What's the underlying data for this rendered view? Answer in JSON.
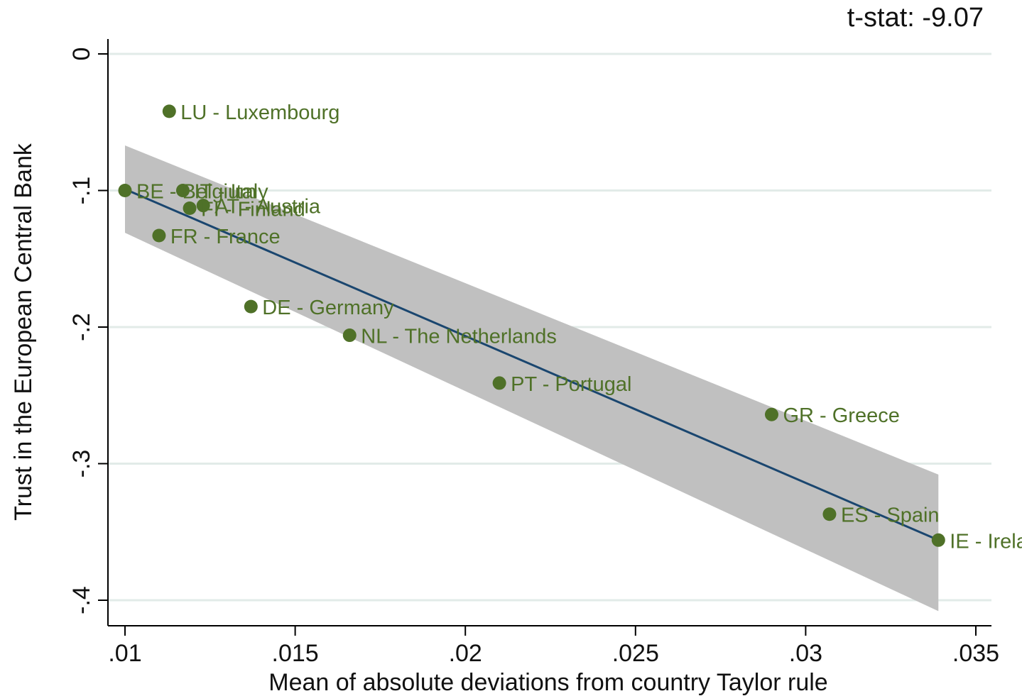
{
  "chart_data": {
    "type": "scatter",
    "annotation": "t-stat: -9.07",
    "xlabel": "Mean of absolute deviations from country Taylor rule",
    "ylabel": "Trust in the European Central Bank",
    "xlim": [
      0.0095,
      0.0355
    ],
    "ylim": [
      -0.418,
      0.007
    ],
    "x_ticks": [
      {
        "value": 0.01,
        "label": ".01"
      },
      {
        "value": 0.015,
        "label": ".015"
      },
      {
        "value": 0.02,
        "label": ".02"
      },
      {
        "value": 0.025,
        "label": ".025"
      },
      {
        "value": 0.03,
        "label": ".03"
      },
      {
        "value": 0.035,
        "label": ".035"
      }
    ],
    "y_ticks": [
      {
        "value": 0,
        "label": "0"
      },
      {
        "value": -0.1,
        "label": "-.1"
      },
      {
        "value": -0.2,
        "label": "-.2"
      },
      {
        "value": -0.3,
        "label": "-.3"
      },
      {
        "value": -0.4,
        "label": "-.4"
      }
    ],
    "grid": true,
    "colors": {
      "points": "#4f7128",
      "fit_line": "#1a466f",
      "confidence_band": "#c0c0c0",
      "grid": "#e2ebe8"
    },
    "points": [
      {
        "label": "LU - Luxembourg",
        "x": 0.0113,
        "y": -0.042
      },
      {
        "label": "BE - Belgium",
        "x": 0.01,
        "y": -0.1
      },
      {
        "label": "IT - Italy",
        "x": 0.0117,
        "y": -0.1
      },
      {
        "label": "AT - Austria",
        "x": 0.0123,
        "y": -0.111
      },
      {
        "label": "FI - Finland",
        "x": 0.0119,
        "y": -0.113
      },
      {
        "label": "FR - France",
        "x": 0.011,
        "y": -0.133
      },
      {
        "label": "DE - Germany",
        "x": 0.0137,
        "y": -0.185
      },
      {
        "label": "NL - The Netherlands",
        "x": 0.0166,
        "y": -0.206
      },
      {
        "label": "PT - Portugal",
        "x": 0.021,
        "y": -0.241
      },
      {
        "label": "GR - Greece",
        "x": 0.029,
        "y": -0.264
      },
      {
        "label": "ES - Spain",
        "x": 0.0307,
        "y": -0.337
      },
      {
        "label": "IE - Ireland",
        "x": 0.0339,
        "y": -0.356
      }
    ],
    "fit_line": {
      "x": [
        0.01,
        0.0339
      ],
      "y": [
        -0.099,
        -0.356
      ]
    },
    "confidence_band": {
      "x": [
        0.01,
        0.0339
      ],
      "upper": [
        -0.067,
        -0.308
      ],
      "lower": [
        -0.131,
        -0.408
      ]
    }
  }
}
